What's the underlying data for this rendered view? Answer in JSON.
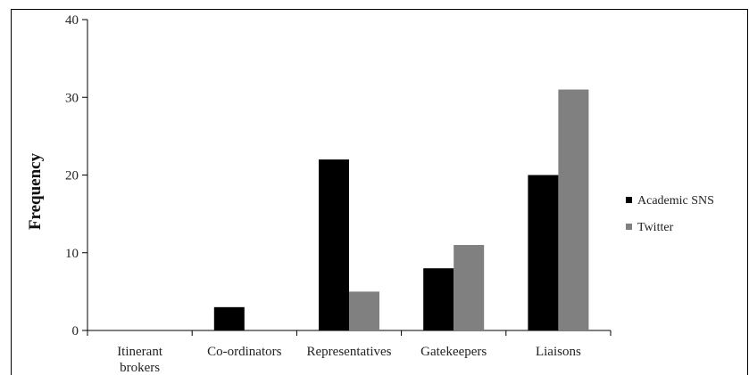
{
  "chart_data": {
    "type": "bar",
    "title": "",
    "xlabel": "",
    "ylabel": "Frequency",
    "ylim": [
      0,
      40
    ],
    "yticks": [
      0,
      10,
      20,
      30,
      40
    ],
    "categories": [
      "Itinerant brokers",
      "Co-ordinators",
      "Representatives",
      "Gatekeepers",
      "Liaisons"
    ],
    "series": [
      {
        "name": "Academic SNS",
        "color": "#000000",
        "values": [
          0,
          3,
          22,
          8,
          20
        ]
      },
      {
        "name": "Twitter",
        "color": "#808080",
        "values": [
          0,
          0,
          5,
          11,
          31
        ]
      }
    ],
    "grid": false,
    "legend_position": "right"
  }
}
